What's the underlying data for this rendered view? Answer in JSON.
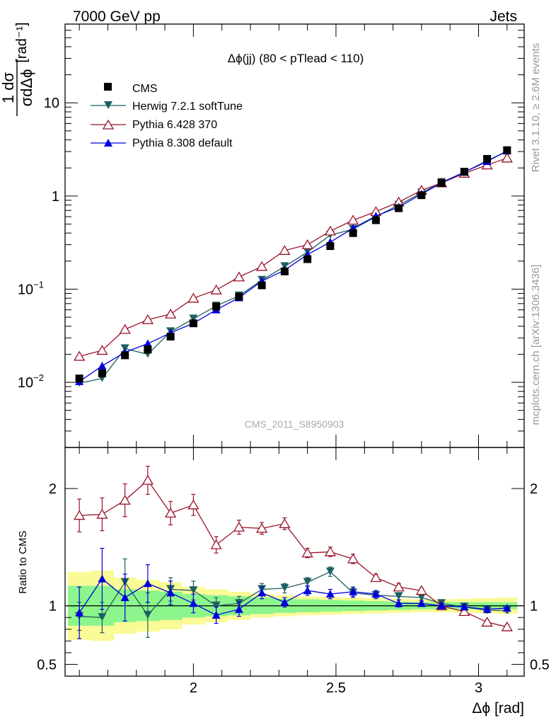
{
  "header": {
    "left": "7000 GeV pp",
    "right": "Jets",
    "plot_title": "Δϕ(jj) (80 < pTlead <  110)",
    "watermark": "CMS_2011_S8950903",
    "side_rivet": "Rivet 3.1.10, ≥ 2.6M events",
    "side_mcplots": "mcplots.cern.ch [arXiv:1306.3436]"
  },
  "colors": {
    "cms": "#000000",
    "herwig": "#1f5f5f",
    "pythia6": "#99142a",
    "pythia8": "#0000dd",
    "band_inner": "#8cf58c",
    "band_outer": "#fafa96"
  },
  "chart_data": [
    {
      "type": "line",
      "ylabel_num": "1 dσ",
      "ylabel_den": "σdΔϕ",
      "ylabel_unit": "[rad⁻¹]",
      "yscale": "log",
      "ylim": [
        0.002,
        70
      ],
      "xlim": [
        1.55,
        3.16
      ],
      "yticks": [
        {
          "value": 0.01,
          "base": "10",
          "exp": "−2"
        },
        {
          "value": 0.1,
          "base": "10",
          "exp": "−1"
        },
        {
          "value": 1,
          "base": "1",
          "exp": ""
        },
        {
          "value": 10,
          "base": "10",
          "exp": ""
        }
      ],
      "x": [
        1.6,
        1.68,
        1.76,
        1.84,
        1.92,
        2.0,
        2.08,
        2.16,
        2.24,
        2.32,
        2.4,
        2.48,
        2.56,
        2.64,
        2.72,
        2.8,
        2.87,
        2.95,
        3.03,
        3.1
      ],
      "legend": [
        "CMS",
        "Herwig 7.2.1 softTune",
        "Pythia 6.428 370",
        "Pythia 8.308 default"
      ],
      "series": [
        {
          "name": "CMS",
          "marker": "square",
          "values": [
            0.011,
            0.0125,
            0.0195,
            0.0225,
            0.031,
            0.043,
            0.065,
            0.083,
            0.11,
            0.155,
            0.21,
            0.29,
            0.4,
            0.55,
            0.74,
            1.02,
            1.38,
            1.82,
            2.5,
            3.1
          ]
        },
        {
          "name": "Herwig 7.2.1 softTune",
          "marker": "triangle-down",
          "values": [
            0.0098,
            0.011,
            0.023,
            0.02,
            0.035,
            0.048,
            0.066,
            0.085,
            0.125,
            0.175,
            0.25,
            0.38,
            0.44,
            0.6,
            0.8,
            1.08,
            1.4,
            1.8,
            2.4,
            3.0
          ]
        },
        {
          "name": "Pythia 6.428 370",
          "marker": "triangle-open",
          "values": [
            0.019,
            0.022,
            0.037,
            0.047,
            0.054,
            0.08,
            0.098,
            0.135,
            0.175,
            0.26,
            0.3,
            0.42,
            0.55,
            0.68,
            0.86,
            1.15,
            1.38,
            1.75,
            2.15,
            2.55
          ]
        },
        {
          "name": "Pythia 8.308 default",
          "marker": "triangle-up",
          "values": [
            0.0102,
            0.015,
            0.021,
            0.026,
            0.034,
            0.043,
            0.06,
            0.081,
            0.122,
            0.16,
            0.235,
            0.32,
            0.45,
            0.61,
            0.76,
            1.05,
            1.38,
            1.8,
            2.35,
            3.05
          ]
        }
      ]
    },
    {
      "type": "line",
      "ylabel": "Ratio to CMS",
      "xlabel": "Δϕ [rad]",
      "ylim": [
        0.4,
        2.35
      ],
      "xlim": [
        1.55,
        3.16
      ],
      "xticks": [
        {
          "value": 2,
          "label": "2"
        },
        {
          "value": 2.5,
          "label": "2.5"
        },
        {
          "value": 3,
          "label": "3"
        }
      ],
      "yticks": [
        {
          "value": 0.5,
          "label": "0.5"
        },
        {
          "value": 1,
          "label": "1"
        },
        {
          "value": 2,
          "label": "2"
        }
      ],
      "x": [
        1.6,
        1.68,
        1.76,
        1.84,
        1.92,
        2.0,
        2.08,
        2.16,
        2.24,
        2.32,
        2.4,
        2.48,
        2.56,
        2.64,
        2.72,
        2.8,
        2.87,
        2.95,
        3.03,
        3.1
      ],
      "band_inner": [
        0.17,
        0.17,
        0.14,
        0.13,
        0.12,
        0.1,
        0.09,
        0.08,
        0.07,
        0.06,
        0.055,
        0.05,
        0.045,
        0.04,
        0.035,
        0.03,
        0.03,
        0.03,
        0.03,
        0.03
      ],
      "band_outer": [
        0.29,
        0.3,
        0.24,
        0.22,
        0.2,
        0.16,
        0.14,
        0.12,
        0.1,
        0.09,
        0.08,
        0.075,
        0.07,
        0.065,
        0.06,
        0.055,
        0.055,
        0.06,
        0.065,
        0.07
      ],
      "series": [
        {
          "name": "Herwig 7.2.1 softTune",
          "marker": "triangle-down",
          "values": [
            0.91,
            0.9,
            1.2,
            0.92,
            1.14,
            1.13,
            1.0,
            1.02,
            1.14,
            1.15,
            1.2,
            1.29,
            1.11,
            1.09,
            1.08,
            1.07,
            1.02,
            0.99,
            0.96,
            0.96
          ],
          "errors": [
            0.12,
            0.13,
            0.2,
            0.19,
            0.1,
            0.08,
            0.07,
            0.06,
            0.05,
            0.04,
            0.04,
            0.04,
            0.04,
            0.03,
            0.03,
            0.02,
            0.02,
            0.02,
            0.02,
            0.02
          ]
        },
        {
          "name": "Pythia 6.428 370",
          "marker": "triangle-open",
          "values": [
            1.77,
            1.78,
            1.9,
            2.07,
            1.79,
            1.86,
            1.52,
            1.67,
            1.66,
            1.7,
            1.45,
            1.46,
            1.4,
            1.24,
            1.16,
            1.13,
            1.0,
            0.95,
            0.86,
            0.82
          ],
          "errors": [
            0.14,
            0.14,
            0.14,
            0.12,
            0.1,
            0.09,
            0.07,
            0.06,
            0.05,
            0.05,
            0.04,
            0.04,
            0.04,
            0.03,
            0.03,
            0.02,
            0.02,
            0.02,
            0.02,
            0.02
          ]
        },
        {
          "name": "Pythia 8.308 default",
          "marker": "triangle-up",
          "values": [
            0.94,
            1.23,
            1.07,
            1.19,
            1.11,
            1.02,
            0.92,
            0.97,
            1.11,
            1.03,
            1.13,
            1.1,
            1.12,
            1.1,
            1.02,
            1.02,
            1.0,
            0.99,
            0.97,
            0.98
          ],
          "errors": [
            0.22,
            0.26,
            0.2,
            0.16,
            0.1,
            0.08,
            0.07,
            0.06,
            0.05,
            0.04,
            0.04,
            0.04,
            0.04,
            0.03,
            0.03,
            0.02,
            0.02,
            0.02,
            0.02,
            0.02
          ]
        }
      ]
    }
  ]
}
